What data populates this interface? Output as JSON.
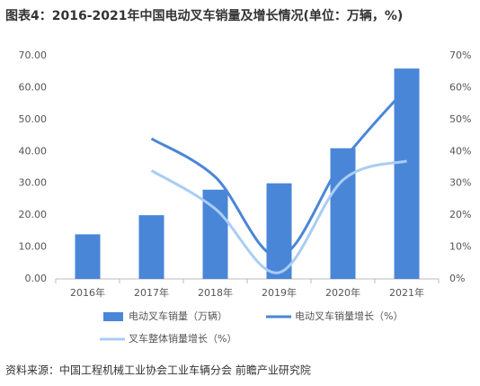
{
  "chart_data": {
    "type": "bar",
    "title": "图表4：2016-2021年中国电动叉车销量及增长情况(单位：万辆，%)",
    "source": "资料来源：中国工程机械工业协会工业车辆分会 前瞻产业研究院",
    "categories": [
      "2016年",
      "2017年",
      "2018年",
      "2019年",
      "2020年",
      "2021年"
    ],
    "series": [
      {
        "name": "电动叉车销量（万辆）",
        "color": "#4a86d8",
        "type": "bar",
        "values": [
          14,
          20,
          28,
          30,
          41,
          66
        ]
      },
      {
        "name": "电动叉车销量增长（%）",
        "color": "#4a86d8",
        "type": "line",
        "axis": "y2",
        "values": [
          null,
          44,
          32,
          7,
          37,
          60
        ]
      },
      {
        "name": "叉车整体销量增长（%）",
        "color": "#a9cdf4",
        "type": "line",
        "axis": "y2",
        "values": [
          null,
          34,
          22,
          2,
          31,
          37
        ]
      }
    ],
    "ylim": [
      0,
      70
    ],
    "yticks": [
      {
        "value": 0,
        "label": "0.00"
      },
      {
        "value": 10,
        "label": "10.00"
      },
      {
        "value": 20,
        "label": "20.00"
      },
      {
        "value": 30,
        "label": "30.00"
      },
      {
        "value": 40,
        "label": "40.00"
      },
      {
        "value": 50,
        "label": "50.00"
      },
      {
        "value": 60,
        "label": "60.00"
      },
      {
        "value": 70,
        "label": "70.00"
      }
    ],
    "y2lim": [
      0,
      70
    ],
    "y2ticks": [
      {
        "value": 0,
        "label": "0%"
      },
      {
        "value": 10,
        "label": "10%"
      },
      {
        "value": 20,
        "label": "20%"
      },
      {
        "value": 30,
        "label": "30%"
      },
      {
        "value": 40,
        "label": "40%"
      },
      {
        "value": 50,
        "label": "50%"
      },
      {
        "value": 60,
        "label": "60%"
      },
      {
        "value": 70,
        "label": "70%"
      }
    ]
  }
}
